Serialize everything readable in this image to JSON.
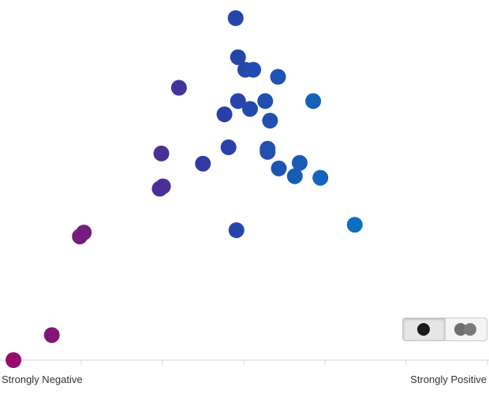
{
  "chart_data": {
    "type": "scatter",
    "xlabel_left": "Strongly Negative",
    "xlabel_right": "Strongly Positive",
    "xlim": [
      0,
      6
    ],
    "ylim": [
      0,
      440
    ],
    "grid": false,
    "color_scale": {
      "negative": "#9a0a6a",
      "mid": "#2a3fa8",
      "positive": "#0a72c4"
    },
    "points": [
      {
        "x": 2.85,
        "y": 437
      },
      {
        "x": 2.88,
        "y": 387
      },
      {
        "x": 2.97,
        "y": 371
      },
      {
        "x": 3.07,
        "y": 371
      },
      {
        "x": 3.38,
        "y": 362
      },
      {
        "x": 2.14,
        "y": 348
      },
      {
        "x": 2.88,
        "y": 331
      },
      {
        "x": 3.22,
        "y": 331
      },
      {
        "x": 3.82,
        "y": 331
      },
      {
        "x": 3.03,
        "y": 321
      },
      {
        "x": 2.71,
        "y": 314
      },
      {
        "x": 3.28,
        "y": 306
      },
      {
        "x": 2.76,
        "y": 272
      },
      {
        "x": 3.25,
        "y": 270
      },
      {
        "x": 3.25,
        "y": 266
      },
      {
        "x": 1.92,
        "y": 264
      },
      {
        "x": 3.65,
        "y": 252
      },
      {
        "x": 2.44,
        "y": 251
      },
      {
        "x": 3.39,
        "y": 245
      },
      {
        "x": 3.59,
        "y": 235
      },
      {
        "x": 3.91,
        "y": 233
      },
      {
        "x": 1.94,
        "y": 222
      },
      {
        "x": 1.9,
        "y": 219
      },
      {
        "x": 4.34,
        "y": 173
      },
      {
        "x": 2.86,
        "y": 166
      },
      {
        "x": 0.95,
        "y": 163
      },
      {
        "x": 0.9,
        "y": 158
      },
      {
        "x": 0.55,
        "y": 32
      },
      {
        "x": 0.07,
        "y": 0
      }
    ]
  },
  "toggle": {
    "mode_single": "single-dot-icon",
    "mode_compare": "double-dot-icon",
    "active": "single"
  }
}
